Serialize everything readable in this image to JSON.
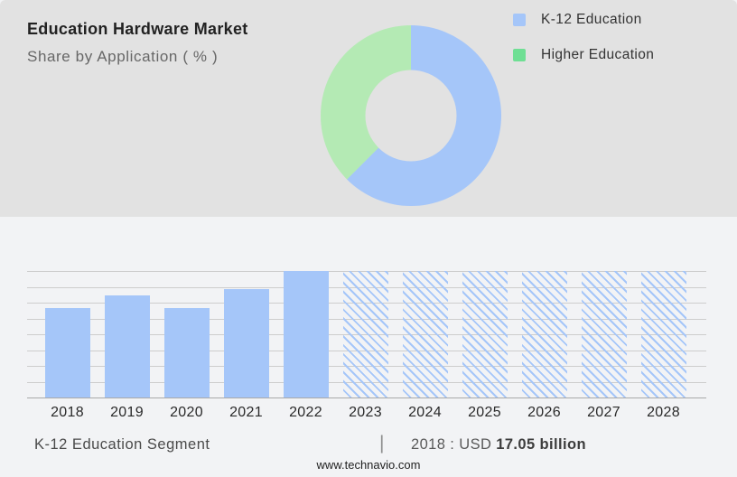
{
  "header": {
    "title": "Education Hardware Market",
    "subtitle": "Share by Application ( % )"
  },
  "legend": {
    "items": [
      {
        "label": "K-12 Education",
        "color": "#a5c6f9"
      },
      {
        "label": "Higher Education",
        "color": "#6fdf94"
      }
    ]
  },
  "colors": {
    "bar_blue": "#a5c6f9",
    "donut_blue": "#a5c6f9",
    "donut_green": "#b4eab4",
    "legend_green": "#6fdf94",
    "top_panel_bg": "#e2e2e2",
    "bottom_panel_bg": "#f2f3f5",
    "gridline": "#cdcdcd"
  },
  "chart_data": [
    {
      "type": "pie",
      "subtype": "donut",
      "title": "Share by Application ( % )",
      "labels": [
        "K-12 Education",
        "Higher Education"
      ],
      "values_pct_est": [
        62.5,
        37.5
      ],
      "colors": [
        "#a5c6f9",
        "#b4eab4"
      ],
      "start_angle_deg": 0,
      "direction": "clockwise",
      "legend_position": "right",
      "data_labels_shown": false
    },
    {
      "type": "bar",
      "categories": [
        "2018",
        "2019",
        "2020",
        "2021",
        "2022",
        "2023",
        "2024",
        "2025",
        "2026",
        "2027",
        "2028"
      ],
      "values_usd_billion_est": [
        17.05,
        19.3,
        16.9,
        20.6,
        24.0,
        24.0,
        24.0,
        24.0,
        24.0,
        24.0,
        24.0
      ],
      "solid_years": [
        "2018",
        "2019",
        "2020",
        "2021",
        "2022"
      ],
      "hatched_forecast_years": [
        "2023",
        "2024",
        "2025",
        "2026",
        "2027",
        "2028"
      ],
      "known_point": {
        "year": "2018",
        "label": "2018 : USD 17.05 billion"
      },
      "ylim_est": [
        0,
        24
      ],
      "gridline_step_est": 3,
      "y_tick_labels_visible": false,
      "grid": "horizontal"
    }
  ],
  "footer": {
    "segment_label": "K-12 Education Segment",
    "divider": "|",
    "value_prefix": "2018 : USD ",
    "value_bold": "17.05 billion",
    "website": "www.technavio.com"
  }
}
